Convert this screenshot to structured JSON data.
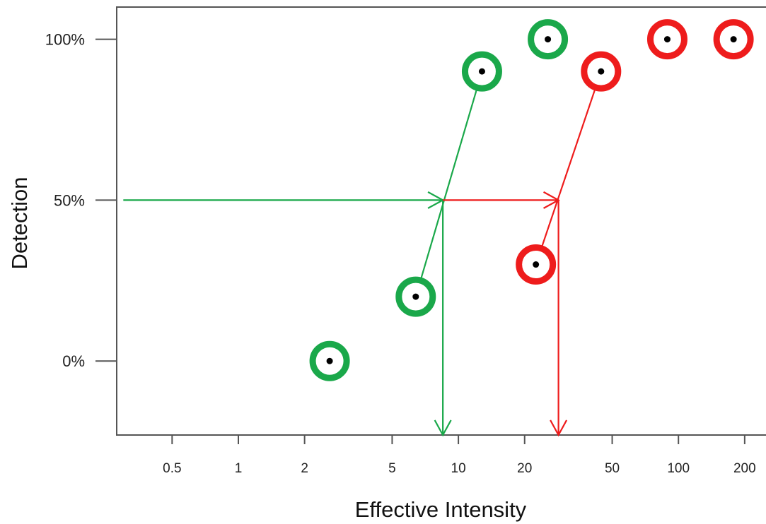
{
  "chart_data": {
    "type": "scatter",
    "title": "",
    "xlabel": "Effective Intensity",
    "ylabel": "Detection",
    "xscale": "log",
    "xlim": [
      0.28,
      250
    ],
    "ylim": [
      -0.23,
      1.1
    ],
    "grid": false,
    "xticks": [
      {
        "value": 0.5,
        "label": "0.5"
      },
      {
        "value": 1,
        "label": "1"
      },
      {
        "value": 2,
        "label": "2"
      },
      {
        "value": 5,
        "label": "5"
      },
      {
        "value": 10,
        "label": "10"
      },
      {
        "value": 20,
        "label": "20"
      },
      {
        "value": 50,
        "label": "50"
      },
      {
        "value": 100,
        "label": "100"
      },
      {
        "value": 200,
        "label": "200"
      }
    ],
    "yticks": [
      {
        "value": 0,
        "label": "0%"
      },
      {
        "value": 0.5,
        "label": "50%"
      },
      {
        "value": 1,
        "label": "100%"
      }
    ],
    "series": [
      {
        "color": "#1aa84a",
        "points": [
          {
            "x": 2.6,
            "y": 0.0
          },
          {
            "x": 6.4,
            "y": 0.2
          },
          {
            "x": 12.8,
            "y": 0.9
          },
          {
            "x": 25.5,
            "y": 1.0
          }
        ],
        "threshold": {
          "x": 8.5,
          "y": 0.5
        },
        "fit_segment": {
          "from": {
            "x": 6.4,
            "y": 0.2
          },
          "to": {
            "x": 12.8,
            "y": 0.9
          }
        }
      },
      {
        "color": "#ee1c1c",
        "points": [
          {
            "x": 22.5,
            "y": 0.3
          },
          {
            "x": 44.5,
            "y": 0.9
          },
          {
            "x": 89,
            "y": 1.0
          },
          {
            "x": 178,
            "y": 1.0
          }
        ],
        "threshold": {
          "x": 28.5,
          "y": 0.5
        },
        "fit_segment": {
          "from": {
            "x": 22.5,
            "y": 0.3
          },
          "to": {
            "x": 44.5,
            "y": 0.9
          }
        }
      }
    ],
    "annotations": [
      {
        "type": "arrow",
        "color": "#1aa84a",
        "from": {
          "x": 0.3,
          "y": 0.5
        },
        "to": {
          "x": 8.5,
          "y": 0.5
        }
      },
      {
        "type": "arrow",
        "color": "#1aa84a",
        "from": {
          "x": 8.5,
          "y": 0.5
        },
        "to": {
          "x": 8.5,
          "y": -0.23
        }
      },
      {
        "type": "arrow",
        "color": "#ee1c1c",
        "from": {
          "x": 8.5,
          "y": 0.5
        },
        "to": {
          "x": 28.5,
          "y": 0.5
        }
      },
      {
        "type": "arrow",
        "color": "#ee1c1c",
        "from": {
          "x": 28.5,
          "y": 0.5
        },
        "to": {
          "x": 28.5,
          "y": -0.23
        }
      }
    ]
  }
}
